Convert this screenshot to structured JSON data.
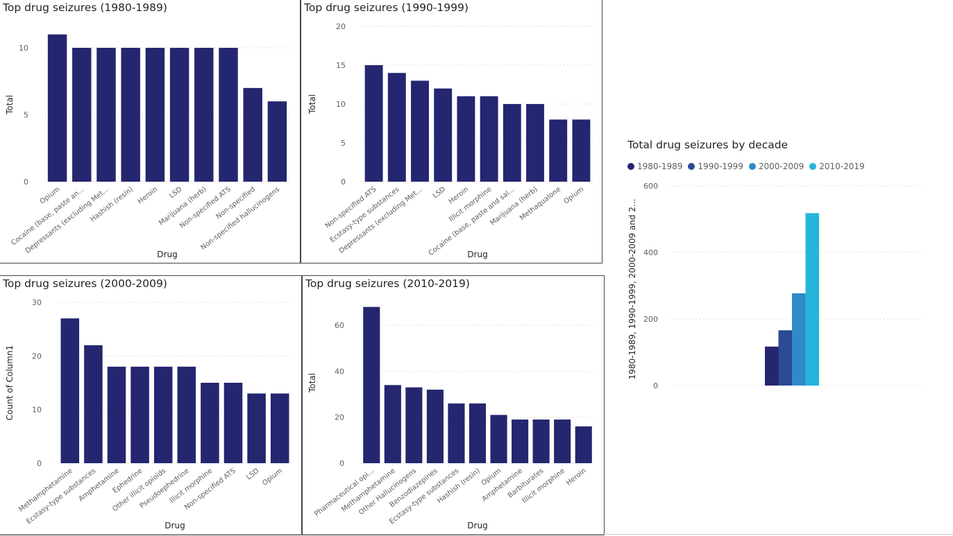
{
  "colors": {
    "bar": "#252670",
    "decade_1980": "#252670",
    "decade_1990": "#2a4a93",
    "decade_2000": "#2f8ac7",
    "decade_2010": "#26b5da"
  },
  "chart_data": [
    {
      "type": "bar",
      "title": "Top drug seizures (1980-1989)",
      "xlabel": "Drug",
      "ylabel": "Total",
      "ylim": [
        0,
        11.5
      ],
      "yticks": [
        0,
        5,
        10
      ],
      "grid": true,
      "categories": [
        "Opium",
        "Cocaine (base, paste an...",
        "Depressants (excluding Met...",
        "Hashish (resin)",
        "Heroin",
        "LSD",
        "Marijuana (herb)",
        "Non-specified ATS",
        "Non-specified",
        "Non-specified hallucinogens"
      ],
      "values": [
        11,
        10,
        10,
        10,
        10,
        10,
        10,
        10,
        7,
        6
      ]
    },
    {
      "type": "bar",
      "title": "Top drug seizures (1990-1999)",
      "xlabel": "Drug",
      "ylabel": "Total",
      "ylim": [
        0,
        20
      ],
      "yticks": [
        0,
        5,
        10,
        15,
        20
      ],
      "grid": true,
      "categories": [
        "Non-specified ATS",
        "Ecstasy-type substances",
        "Depressants (excluding Met...",
        "LSD",
        "Heroin",
        "Illicit morphine",
        "Cocaine (base, paste and sal...",
        "Marijuana (herb)",
        "Methaqualone",
        "Opium"
      ],
      "values": [
        15,
        14,
        13,
        12,
        11,
        11,
        10,
        10,
        8,
        8
      ]
    },
    {
      "type": "bar",
      "title": "Top drug seizures (2000-2009)",
      "xlabel": "Drug",
      "ylabel": "Count of Column1",
      "ylim": [
        0,
        30
      ],
      "yticks": [
        0,
        10,
        20,
        30
      ],
      "grid": true,
      "categories": [
        "Methamphetamine",
        "Ecstasy-type substances",
        "Amphetamine",
        "Ephedrine",
        "Other illicit opioids",
        "Pseudoephedrine",
        "Illicit morphine",
        "Non-specified ATS",
        "LSD",
        "Opium"
      ],
      "values": [
        27,
        22,
        18,
        18,
        18,
        18,
        15,
        15,
        13,
        13
      ]
    },
    {
      "type": "bar",
      "title": "Top drug seizures (2010-2019)",
      "xlabel": "Drug",
      "ylabel": "Total",
      "ylim": [
        0,
        70
      ],
      "yticks": [
        0,
        20,
        40,
        60
      ],
      "grid": true,
      "categories": [
        "Pharmaceutical opi...",
        "Methamphetamine",
        "Other Hallucinogens",
        "Benzodiazepines",
        "Ecstasy-type substances",
        "Hashish (resin)",
        "Opium",
        "Amphetamine",
        "Barbiturates",
        "Illicit morphine",
        "Heroin"
      ],
      "values": [
        68,
        34,
        33,
        32,
        26,
        26,
        21,
        19,
        19,
        19,
        16
      ]
    },
    {
      "type": "bar",
      "title": "Total drug seizures by decade",
      "ylabel": "1980-1989, 1990-1999, 2000-2009 and 2...",
      "ylim": [
        0,
        600
      ],
      "yticks": [
        0,
        200,
        400,
        600
      ],
      "grid": true,
      "legend_position": "top-left",
      "series": [
        {
          "name": "1980-1989",
          "values": [
            117
          ]
        },
        {
          "name": "1990-1999",
          "values": [
            166
          ]
        },
        {
          "name": "2000-2009",
          "values": [
            277
          ]
        },
        {
          "name": "2010-2019",
          "values": [
            518
          ]
        }
      ]
    }
  ]
}
